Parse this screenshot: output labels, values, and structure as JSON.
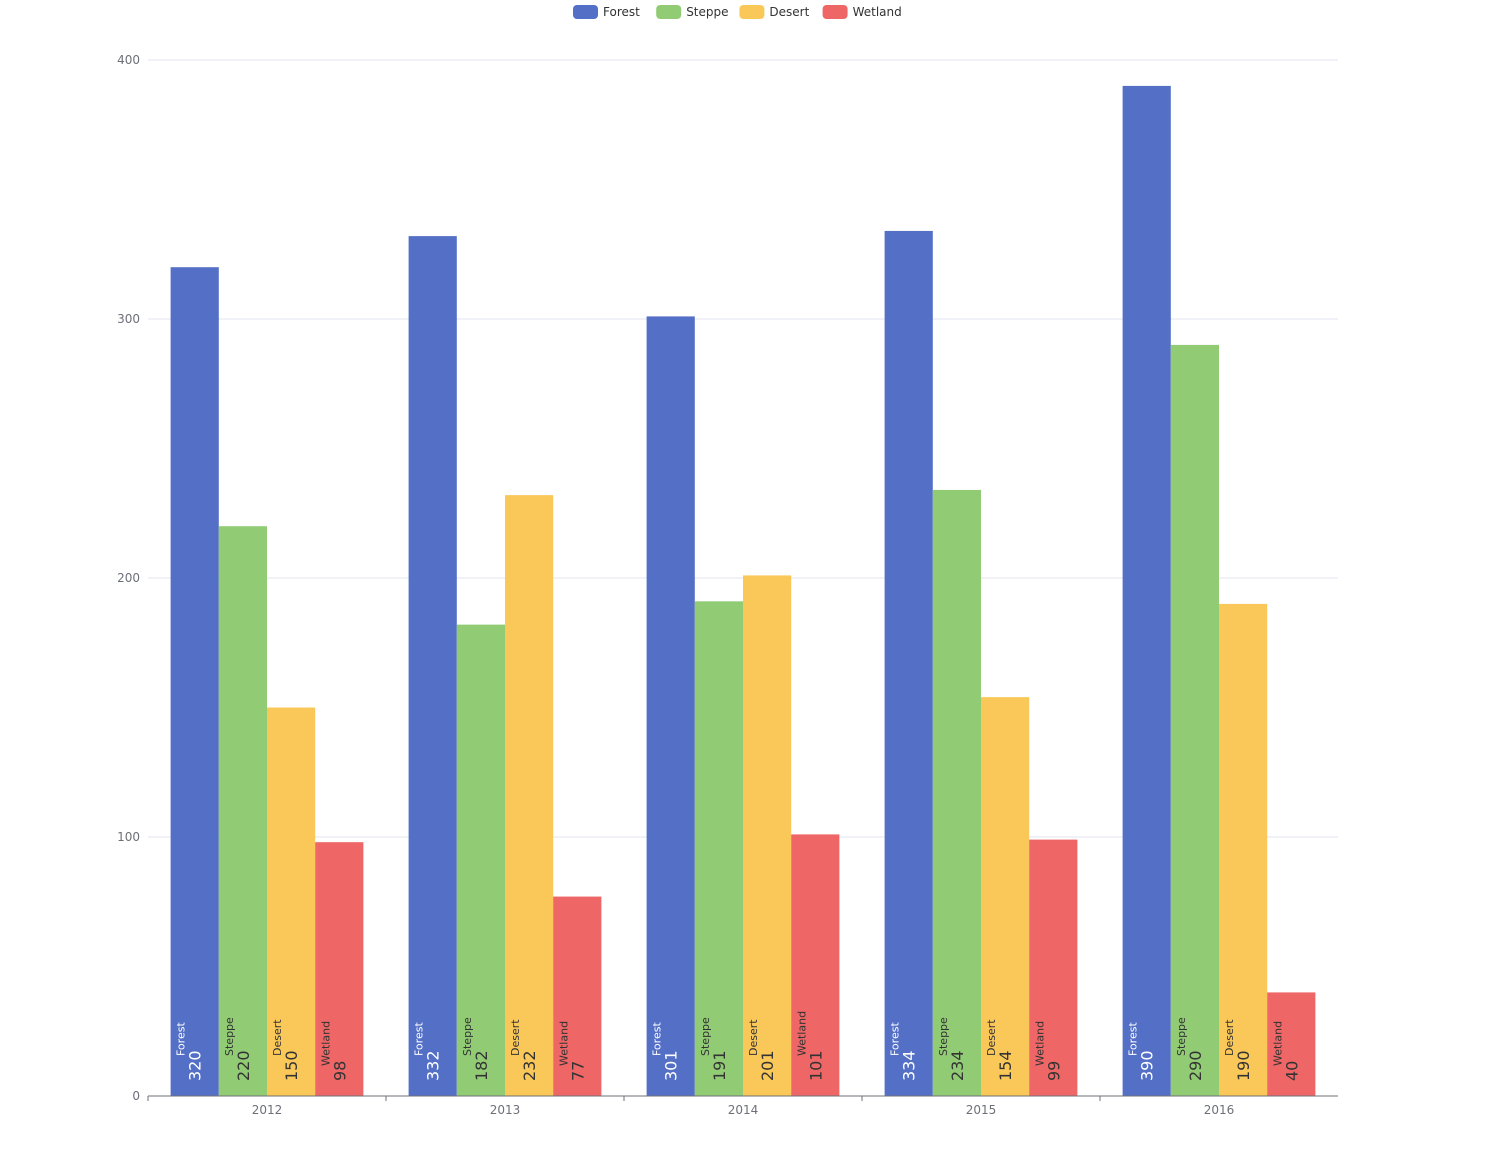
{
  "chart_data": {
    "type": "bar",
    "categories": [
      "2012",
      "2013",
      "2014",
      "2015",
      "2016"
    ],
    "series": [
      {
        "name": "Forest",
        "color": "#5470c6",
        "label_color": "#ffffff",
        "values": [
          320,
          332,
          301,
          334,
          390
        ]
      },
      {
        "name": "Steppe",
        "color": "#91cc75",
        "label_color": "#333333",
        "values": [
          220,
          182,
          191,
          234,
          290
        ]
      },
      {
        "name": "Desert",
        "color": "#fac858",
        "label_color": "#333333",
        "values": [
          150,
          232,
          201,
          154,
          190
        ]
      },
      {
        "name": "Wetland",
        "color": "#ee6666",
        "label_color": "#333333",
        "values": [
          98,
          77,
          101,
          99,
          40
        ]
      }
    ],
    "ylim": [
      0,
      400
    ],
    "yticks": [
      "0",
      "100",
      "200",
      "300",
      "400"
    ],
    "grid": true,
    "legend_position": "top-center",
    "title": "",
    "xlabel": "",
    "ylabel": ""
  }
}
